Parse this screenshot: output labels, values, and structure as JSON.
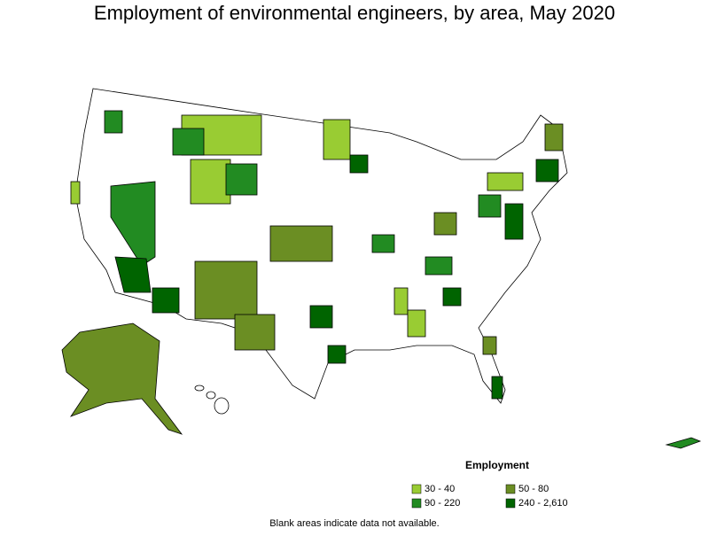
{
  "title": "Employment of environmental engineers, by area, May 2020",
  "legend": {
    "title": "Employment",
    "items": [
      {
        "label": "30 - 40",
        "color": "#99cc33"
      },
      {
        "label": "50 - 80",
        "color": "#6b8e23"
      },
      {
        "label": "90 - 220",
        "color": "#228b22"
      },
      {
        "label": "240 - 2,610",
        "color": "#006400"
      }
    ]
  },
  "note": "Blank areas indicate data not available."
}
